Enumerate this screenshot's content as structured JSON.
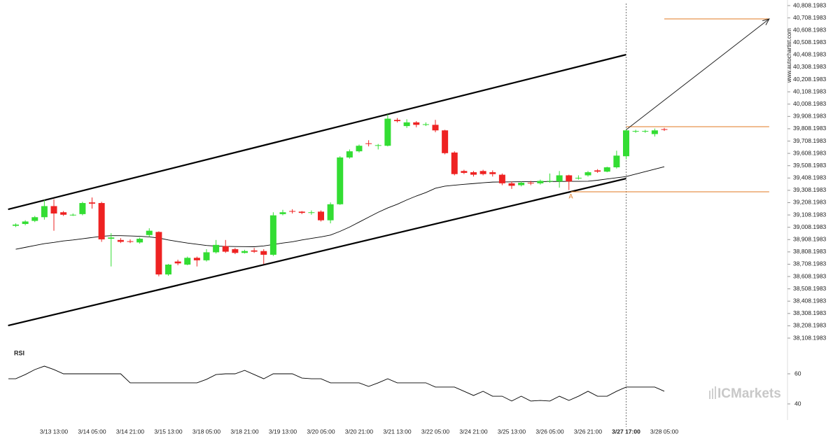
{
  "chart_data": {
    "type": "candlestick",
    "watermark": "www.autochartist.com",
    "logo": "ICMarkets",
    "rsi_label": "RSI",
    "categories": [
      null,
      null,
      null,
      null,
      "3/13 13:00",
      null,
      null,
      null,
      "3/14 05:00",
      null,
      null,
      null,
      "3/14 21:00",
      null,
      null,
      null,
      "3/15 13:00",
      null,
      null,
      null,
      "3/18 05:00",
      null,
      null,
      null,
      "3/18 21:00",
      null,
      null,
      null,
      "3/19 13:00",
      null,
      null,
      null,
      "3/20 05:00",
      null,
      null,
      null,
      "3/20 21:00",
      null,
      null,
      null,
      "3/21 13:00",
      null,
      null,
      null,
      "3/22 05:00",
      null,
      null,
      null,
      "3/24 21:00",
      null,
      null,
      null,
      "3/25 13:00",
      null,
      null,
      null,
      "3/26 05:00",
      null,
      null,
      null,
      "3/26 21:00",
      null,
      null,
      null,
      "3/27 17:00",
      null,
      null,
      null,
      "3/28 05:00"
    ],
    "open": [
      39020,
      39035,
      39060,
      39090,
      39180,
      39130,
      39105,
      39115,
      39210,
      39205,
      38915,
      38905,
      38895,
      38885,
      38945,
      38970,
      38625,
      38730,
      38705,
      38760,
      38740,
      38805,
      38855,
      38830,
      38800,
      38820,
      38815,
      38785,
      39115,
      39140,
      39135,
      39130,
      39135,
      39065,
      39195,
      39575,
      39625,
      39690,
      39670,
      39670,
      39880,
      39830,
      39860,
      39845,
      39840,
      39795,
      39615,
      39465,
      39455,
      39465,
      39455,
      39435,
      39365,
      39350,
      39370,
      39365,
      39380,
      39380,
      39430,
      39405,
      39430,
      39470,
      39460,
      39495,
      39585,
      39790,
      39785,
      39765,
      39805
    ],
    "high": [
      39040,
      39065,
      39100,
      39230,
      39235,
      39140,
      39120,
      39215,
      39250,
      39215,
      38960,
      38920,
      38910,
      38925,
      39000,
      38975,
      38710,
      38745,
      38770,
      38770,
      38830,
      38905,
      38905,
      38840,
      38825,
      38840,
      38830,
      39130,
      39150,
      39155,
      39140,
      39145,
      39145,
      39210,
      39585,
      39640,
      39680,
      39715,
      39685,
      39925,
      39895,
      39885,
      39870,
      39860,
      39880,
      39800,
      39625,
      39475,
      39465,
      39475,
      39470,
      39445,
      39380,
      39380,
      39385,
      39395,
      39445,
      39465,
      39435,
      39430,
      39465,
      39480,
      39500,
      39630,
      39805,
      39800,
      39800,
      39810,
      39815
    ],
    "low": [
      39010,
      39025,
      39050,
      39070,
      38980,
      39100,
      39100,
      39105,
      39160,
      38890,
      38690,
      38880,
      38880,
      38875,
      38930,
      38610,
      38615,
      38700,
      38700,
      38690,
      38730,
      38795,
      38800,
      38790,
      38795,
      38800,
      38710,
      38775,
      39105,
      39120,
      39115,
      39110,
      39055,
      39040,
      39190,
      39565,
      39615,
      39665,
      39640,
      39665,
      39860,
      39815,
      39820,
      39830,
      39780,
      39600,
      39430,
      39440,
      39420,
      39430,
      39420,
      39350,
      39320,
      39340,
      39350,
      39355,
      39370,
      39330,
      39310,
      39395,
      39420,
      39450,
      39455,
      39485,
      39560,
      39775,
      39775,
      39745,
      39790
    ],
    "close": [
      39030,
      39055,
      39090,
      39180,
      39120,
      39110,
      39110,
      39205,
      39200,
      38910,
      38925,
      38890,
      38890,
      38915,
      38980,
      38625,
      38705,
      38715,
      38760,
      38740,
      38805,
      38865,
      38810,
      38800,
      38815,
      38810,
      38785,
      39105,
      39130,
      39135,
      39125,
      39130,
      39065,
      39195,
      39575,
      39625,
      39670,
      39685,
      39675,
      39890,
      39870,
      39860,
      39840,
      39845,
      39795,
      39610,
      39440,
      39450,
      39435,
      39440,
      39440,
      39365,
      39345,
      39370,
      39365,
      39385,
      39385,
      39430,
      39380,
      39410,
      39455,
      39460,
      39495,
      39590,
      39795,
      39790,
      39790,
      39795,
      39800
    ],
    "up_color": "#33dd33",
    "down_color": "#ee2222",
    "ylim": [
      38108.1983,
      40808.1983
    ],
    "yticks": [
      {
        "value": 38108.1983,
        "label": "38,108.1983"
      },
      {
        "value": 38208.1983,
        "label": "38,208.1983"
      },
      {
        "value": 38308.1983,
        "label": "38,308.1983"
      },
      {
        "value": 38408.1983,
        "label": "38,408.1983"
      },
      {
        "value": 38508.1983,
        "label": "38,508.1983"
      },
      {
        "value": 38608.1983,
        "label": "38,608.1983"
      },
      {
        "value": 38708.1983,
        "label": "38,708.1983"
      },
      {
        "value": 38808.1983,
        "label": "38,808.1983"
      },
      {
        "value": 38908.1983,
        "label": "38,908.1983"
      },
      {
        "value": 39008.1983,
        "label": "39,008.1983"
      },
      {
        "value": 39108.1983,
        "label": "39,108.1983"
      },
      {
        "value": 39208.1983,
        "label": "39,208.1983"
      },
      {
        "value": 39308.1983,
        "label": "39,308.1983"
      },
      {
        "value": 39408.1983,
        "label": "39,408.1983"
      },
      {
        "value": 39508.1983,
        "label": "39,508.1983"
      },
      {
        "value": 39608.1983,
        "label": "39,608.1983"
      },
      {
        "value": 39708.1983,
        "label": "39,708.1983"
      },
      {
        "value": 39808.1983,
        "label": "39,808.1983"
      },
      {
        "value": 39908.1983,
        "label": "39,908.1983"
      },
      {
        "value": 40008.1983,
        "label": "40,008.1983"
      },
      {
        "value": 40108.1983,
        "label": "40,108.1983"
      },
      {
        "value": 40208.1983,
        "label": "40,208.1983"
      },
      {
        "value": 40308.1983,
        "label": "40,308.1983"
      },
      {
        "value": 40408.1983,
        "label": "40,408.1983"
      },
      {
        "value": 40508.1983,
        "label": "40,508.1983"
      },
      {
        "value": 40608.1983,
        "label": "40,608.1983"
      },
      {
        "value": 40708.1983,
        "label": "40,708.1983"
      },
      {
        "value": 40808.1983,
        "label": "40,808.1983"
      }
    ],
    "moving_average": {
      "color": "#000000",
      "values": [
        38830,
        38845,
        38860,
        38875,
        38885,
        38897,
        38905,
        38915,
        38925,
        38935,
        38940,
        38940,
        38938,
        38935,
        38930,
        38921,
        38905,
        38892,
        38880,
        38870,
        38860,
        38855,
        38853,
        38852,
        38851,
        38850,
        38857,
        38868,
        38880,
        38890,
        38905,
        38918,
        38930,
        38945,
        38975,
        39010,
        39050,
        39090,
        39130,
        39165,
        39195,
        39230,
        39262,
        39290,
        39325,
        39342,
        39350,
        39357,
        39363,
        39370,
        39375,
        39376,
        39377,
        39378,
        39378,
        39379,
        39380,
        39380,
        39381,
        39381,
        39382,
        39390,
        39400,
        39410,
        39420,
        39440,
        39460,
        39480,
        39500
      ]
    },
    "channel": {
      "color": "#000000",
      "x": [
        -0.8,
        64
      ],
      "upper": [
        39154,
        40410
      ],
      "lower": [
        38210,
        39404
      ]
    },
    "marker_index": 64,
    "levels": {
      "color": "#e07a20",
      "items": [
        {
          "value": 40700,
          "x": [
            68,
            79
          ]
        },
        {
          "value": 39825,
          "x": [
            64,
            79
          ]
        },
        {
          "value": 39296,
          "x": [
            58.2,
            79
          ]
        }
      ]
    },
    "arrow": {
      "x": [
        64,
        79
      ],
      "y": [
        39800,
        40700
      ]
    },
    "annotation": {
      "text": "A",
      "x": 58.2,
      "y": 39256
    },
    "rsi": {
      "color": "#000000",
      "ylim": [
        30,
        78
      ],
      "yticks": [
        40,
        60
      ],
      "values": [
        56.7,
        59.5,
        62.8,
        65.1,
        62.8,
        60,
        60,
        60,
        60,
        60,
        60,
        60,
        54,
        54,
        54,
        54,
        54,
        54,
        54,
        54,
        56.3,
        59.5,
        60,
        60,
        62.3,
        59.5,
        56.7,
        60,
        60,
        60,
        57.2,
        56.7,
        56.7,
        54,
        54,
        54,
        54,
        51.6,
        54,
        56.7,
        54,
        54,
        54,
        54,
        51.2,
        51.2,
        51.2,
        48.4,
        45.6,
        48.4,
        45.1,
        45.1,
        41.9,
        45.1,
        41.9,
        42.3,
        41.9,
        45.1,
        42.3,
        45.1,
        48.4,
        45.1,
        45.1,
        48.4,
        51.2,
        51.2,
        51.2,
        51.2,
        48.4
      ]
    }
  }
}
